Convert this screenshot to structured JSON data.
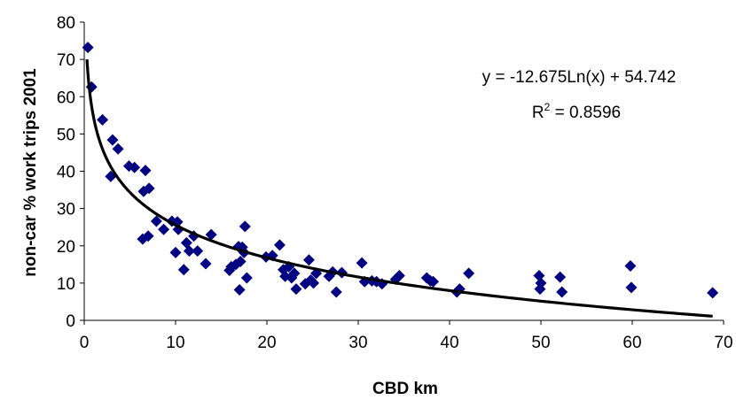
{
  "chart_data": {
    "type": "scatter",
    "title": "",
    "xlabel": "CBD km",
    "ylabel": "non-car % work trips 2001",
    "xlim": [
      0,
      70
    ],
    "ylim": [
      0,
      80
    ],
    "xticks": [
      0,
      10,
      20,
      30,
      40,
      50,
      60,
      70
    ],
    "yticks": [
      0,
      10,
      20,
      30,
      40,
      50,
      60,
      70,
      80
    ],
    "grid": false,
    "legend": "none",
    "marker_color": "#000080",
    "trend_color": "#000000",
    "trendline": {
      "type": "logarithmic",
      "a": -12.675,
      "b": 54.742,
      "x_range": [
        0.3,
        68.8
      ],
      "equation_text": "y = -12.675Ln(x) + 54.742",
      "r2_prefix": "R",
      "r2_sup": "2",
      "r2_suffix": " = 0.8596"
    },
    "series": [
      {
        "points": [
          [
            0.4,
            73.2
          ],
          [
            0.8,
            62.6
          ],
          [
            2.0,
            53.8
          ],
          [
            2.9,
            38.6
          ],
          [
            3.1,
            48.4
          ],
          [
            3.7,
            46.0
          ],
          [
            4.9,
            41.4
          ],
          [
            5.5,
            41.0
          ],
          [
            6.4,
            21.8
          ],
          [
            6.5,
            34.6
          ],
          [
            6.7,
            40.2
          ],
          [
            7.0,
            22.6
          ],
          [
            7.1,
            35.4
          ],
          [
            7.9,
            26.6
          ],
          [
            8.7,
            24.4
          ],
          [
            9.6,
            26.6
          ],
          [
            10.0,
            18.2
          ],
          [
            10.2,
            26.4
          ],
          [
            10.3,
            24.4
          ],
          [
            10.9,
            13.6
          ],
          [
            11.2,
            20.8
          ],
          [
            11.5,
            18.6
          ],
          [
            12.0,
            22.6
          ],
          [
            12.4,
            18.6
          ],
          [
            13.3,
            15.2
          ],
          [
            13.9,
            23.0
          ],
          [
            15.9,
            13.4
          ],
          [
            16.1,
            14.4
          ],
          [
            16.6,
            15.0
          ],
          [
            16.9,
            19.8
          ],
          [
            17.0,
            8.2
          ],
          [
            17.1,
            15.8
          ],
          [
            17.3,
            19.6
          ],
          [
            17.5,
            18.2
          ],
          [
            17.6,
            25.2
          ],
          [
            17.8,
            11.4
          ],
          [
            19.9,
            17.0
          ],
          [
            20.6,
            17.4
          ],
          [
            21.4,
            20.2
          ],
          [
            21.8,
            13.6
          ],
          [
            22.0,
            11.8
          ],
          [
            22.4,
            14.4
          ],
          [
            22.7,
            11.4
          ],
          [
            23.0,
            12.6
          ],
          [
            23.2,
            8.4
          ],
          [
            24.2,
            9.8
          ],
          [
            24.6,
            16.2
          ],
          [
            24.8,
            10.8
          ],
          [
            25.1,
            10.0
          ],
          [
            25.4,
            12.6
          ],
          [
            26.8,
            11.8
          ],
          [
            27.2,
            13.0
          ],
          [
            27.6,
            7.6
          ],
          [
            28.2,
            12.8
          ],
          [
            30.4,
            15.4
          ],
          [
            30.7,
            10.4
          ],
          [
            31.5,
            10.6
          ],
          [
            32.0,
            10.4
          ],
          [
            32.6,
            9.8
          ],
          [
            34.1,
            11.0
          ],
          [
            34.5,
            12.0
          ],
          [
            37.5,
            11.4
          ],
          [
            37.9,
            10.6
          ],
          [
            38.2,
            10.4
          ],
          [
            40.8,
            7.6
          ],
          [
            41.1,
            8.4
          ],
          [
            42.1,
            12.6
          ],
          [
            49.8,
            12.0
          ],
          [
            49.9,
            8.4
          ],
          [
            50.0,
            10.0
          ],
          [
            52.1,
            11.6
          ],
          [
            52.3,
            7.6
          ],
          [
            59.8,
            14.6
          ],
          [
            59.9,
            8.8
          ],
          [
            68.8,
            7.4
          ]
        ]
      }
    ]
  }
}
